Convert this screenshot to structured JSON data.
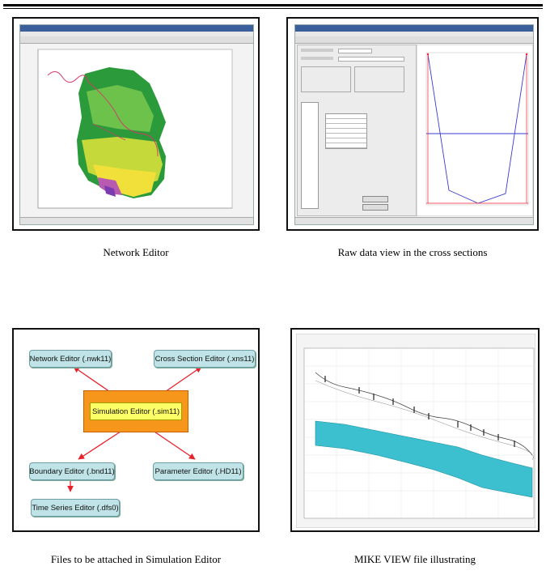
{
  "panels": {
    "network_editor": {
      "caption": "Network Editor"
    },
    "cross_sections": {
      "caption": "Raw data view in the cross sections"
    },
    "simulation_files": {
      "caption": "Files to be attached in Simulation Editor",
      "nodes": {
        "network": "Network Editor (.nwk11)",
        "cross_section": "Cross Section Editor (.xns11)",
        "simulation": "Simulation Editor (.sim11)",
        "boundary": "Boundary Editor (.bnd11)",
        "parameter": "Parameter Editor (.HD11)",
        "timeseries": "Time Series Editor (.dfs0)"
      },
      "colors": {
        "node_fill": "#bfe3e6",
        "center_fill": "#f6971c",
        "center_node_fill": "#ffff66",
        "arrow": "#e8202a"
      }
    },
    "mike_view": {
      "caption": "MIKE VIEW file illustrating",
      "colors": {
        "band": "#3cc0d0"
      }
    }
  }
}
